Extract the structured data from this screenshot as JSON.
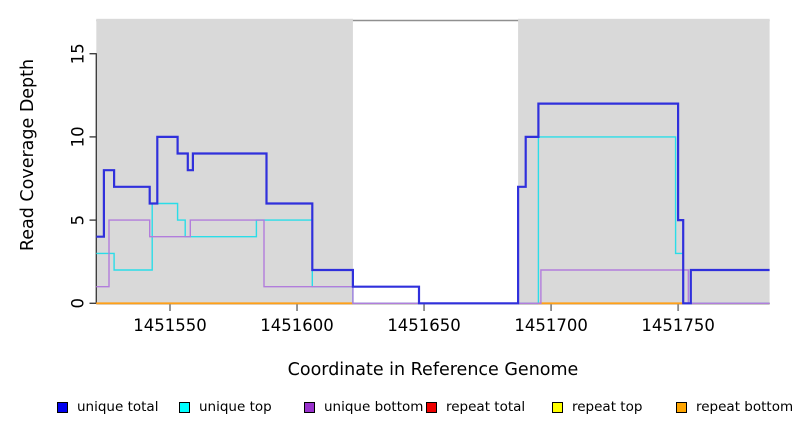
{
  "chart_data": {
    "type": "line",
    "subtype": "step-coverage-plot",
    "title": "",
    "xlabel": "Coordinate in Reference Genome",
    "ylabel": "Read Coverage Depth",
    "xlim": [
      1451521,
      1451786
    ],
    "ylim": [
      0,
      17
    ],
    "x_ticks": [
      1451550,
      1451600,
      1451650,
      1451700,
      1451750
    ],
    "y_ticks": [
      0,
      5,
      10,
      15
    ],
    "grid": false,
    "legend_position": "bottom",
    "shaded_regions": {
      "meaning": "repeat-region-background",
      "color": "#d9d9d9",
      "ranges": [
        [
          1451521,
          1451622
        ],
        [
          1451687,
          1451786
        ]
      ]
    },
    "frame_top_line_color": "#909090",
    "axis_color": "#3f3f3f",
    "x_tick_color": "#8a8a8a",
    "series": [
      {
        "name": "unique total",
        "legend_color": "#0000ee",
        "line_color": "#3030dc",
        "line_width": 2.2,
        "steps": [
          [
            1451521,
            4
          ],
          [
            1451524,
            8
          ],
          [
            1451528,
            7
          ],
          [
            1451542,
            6
          ],
          [
            1451545,
            10
          ],
          [
            1451553,
            9
          ],
          [
            1451557,
            8
          ],
          [
            1451559,
            9
          ],
          [
            1451588,
            6
          ],
          [
            1451606,
            2
          ],
          [
            1451622,
            1
          ],
          [
            1451648,
            0
          ],
          [
            1451687,
            7
          ],
          [
            1451690,
            10
          ],
          [
            1451695,
            12
          ],
          [
            1451750,
            5
          ],
          [
            1451752,
            0
          ],
          [
            1451755,
            2
          ],
          [
            1451786,
            2
          ]
        ]
      },
      {
        "name": "unique top",
        "legend_color": "#00ffff",
        "line_color": "#2adde8",
        "line_width": 1.4,
        "steps": [
          [
            1451521,
            3
          ],
          [
            1451528,
            2
          ],
          [
            1451543,
            6
          ],
          [
            1451553,
            5
          ],
          [
            1451556,
            4
          ],
          [
            1451584,
            5
          ],
          [
            1451606,
            1
          ],
          [
            1451622,
            0
          ],
          [
            1451695,
            10
          ],
          [
            1451749,
            3
          ],
          [
            1451752,
            0
          ],
          [
            1451786,
            0
          ]
        ]
      },
      {
        "name": "unique bottom",
        "legend_color": "#9932cc",
        "line_color": "#b27ddc",
        "line_width": 1.4,
        "steps": [
          [
            1451521,
            1
          ],
          [
            1451526,
            5
          ],
          [
            1451542,
            4
          ],
          [
            1451558,
            5
          ],
          [
            1451587,
            1
          ],
          [
            1451622,
            0
          ],
          [
            1451696,
            2
          ],
          [
            1451754,
            0
          ],
          [
            1451786,
            0
          ]
        ]
      },
      {
        "name": "repeat total",
        "legend_color": "#ee0000",
        "line_color": "#d24c66",
        "line_width": 1.5,
        "steps": [
          [
            1451521,
            0
          ],
          [
            1451786,
            0
          ]
        ]
      },
      {
        "name": "repeat top",
        "legend_color": "#ffff00",
        "line_color": "#ffff00",
        "line_width": 1.4,
        "steps": [
          [
            1451521,
            0
          ],
          [
            1451786,
            0
          ]
        ]
      },
      {
        "name": "repeat bottom",
        "legend_color": "#ffa500",
        "line_color": "#ffa018",
        "line_width": 1.8,
        "steps": [
          [
            1451521,
            0
          ],
          [
            1451622,
            null
          ],
          [
            1451695,
            0
          ],
          [
            1451752,
            null
          ]
        ]
      }
    ],
    "draw_order": [
      "repeat top",
      "repeat total",
      "repeat bottom",
      "unique top",
      "unique bottom",
      "unique total"
    ]
  }
}
